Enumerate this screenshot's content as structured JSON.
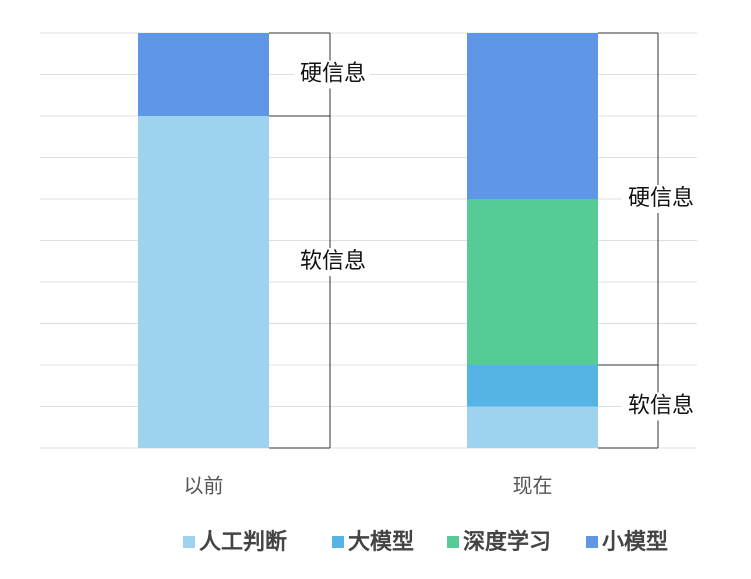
{
  "chart_data": {
    "type": "bar",
    "stacked": true,
    "categories": [
      "以前",
      "现在"
    ],
    "series": [
      {
        "name": "人工判断",
        "color": "#9dd3ee",
        "values": [
          8,
          1
        ]
      },
      {
        "name": "大模型",
        "color": "#56b4e4",
        "values": [
          0,
          1
        ]
      },
      {
        "name": "深度学习",
        "color": "#55cc95",
        "values": [
          0,
          4
        ]
      },
      {
        "name": "小模型",
        "color": "#5f96e6",
        "values": [
          2,
          4
        ]
      }
    ],
    "ylim": [
      0,
      10
    ],
    "yticks": [
      0,
      1,
      2,
      3,
      4,
      5,
      6,
      7,
      8,
      9,
      10
    ],
    "grid": true,
    "annotations": [
      "硬信息",
      "软信息",
      "硬信息",
      "软信息"
    ]
  }
}
